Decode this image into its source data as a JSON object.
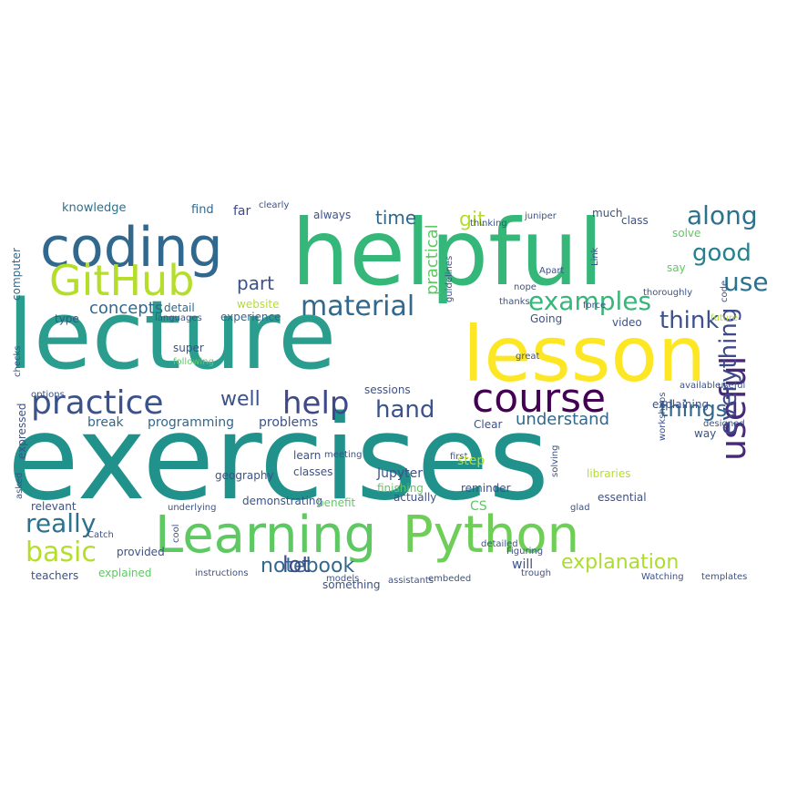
{
  "palette": {
    "dark_purple": "#440154",
    "indigo": "#3b528b",
    "blue_teal": "#31688e",
    "teal": "#21918c",
    "green_teal": "#35b779",
    "green": "#5ec962",
    "lime": "#90d743",
    "yellow": "#fde725"
  },
  "words": [
    {
      "text": "exercises",
      "color": "#21918c"
    },
    {
      "text": "lecture",
      "color": "#2a9d8f"
    },
    {
      "text": "helpful",
      "color": "#35b779"
    },
    {
      "text": "lesson",
      "color": "#fde725"
    },
    {
      "text": "coding",
      "color": "#31688e"
    },
    {
      "text": "Learning",
      "color": "#5ec962"
    },
    {
      "text": "Python",
      "color": "#6ece58"
    },
    {
      "text": "GitHub",
      "color": "#b5de2b"
    },
    {
      "text": "course",
      "color": "#440154"
    },
    {
      "text": "practice",
      "color": "#3b528b"
    },
    {
      "text": "useful",
      "color": "#482878"
    },
    {
      "text": "help",
      "color": "#3e4989"
    },
    {
      "text": "along",
      "color": "#2c728e"
    },
    {
      "text": "good",
      "color": "#27808e"
    },
    {
      "text": "use",
      "color": "#2c728e"
    },
    {
      "text": "material",
      "color": "#31688e"
    },
    {
      "text": "think",
      "color": "#3b528b"
    },
    {
      "text": "examples",
      "color": "#35b779"
    },
    {
      "text": "really",
      "color": "#2c728e"
    },
    {
      "text": "basic",
      "color": "#b5de2b"
    },
    {
      "text": "everything",
      "color": "#3e4989"
    },
    {
      "text": "things",
      "color": "#31688e"
    },
    {
      "text": "hand",
      "color": "#3b528b"
    },
    {
      "text": "well",
      "color": "#3b528b"
    },
    {
      "text": "explanation",
      "color": "#addc30"
    },
    {
      "text": "notebook",
      "color": "#31688e"
    },
    {
      "text": "lot",
      "color": "#3e4989"
    },
    {
      "text": "concepts",
      "color": "#31688e"
    },
    {
      "text": "part",
      "color": "#3b528b"
    },
    {
      "text": "git",
      "color": "#b5de2b"
    },
    {
      "text": "time",
      "color": "#31688e"
    },
    {
      "text": "practical",
      "color": "#5ec962"
    },
    {
      "text": "understand",
      "color": "#31688e"
    },
    {
      "text": "programming",
      "color": "#31688e"
    },
    {
      "text": "problems",
      "color": "#3b528b"
    },
    {
      "text": "break",
      "color": "#31688e"
    },
    {
      "text": "knowledge",
      "color": "#2c728e"
    },
    {
      "text": "find",
      "color": "#31688e"
    },
    {
      "text": "far",
      "color": "#3e4989"
    },
    {
      "text": "clearly",
      "color": "#3b528b"
    },
    {
      "text": "always",
      "color": "#3b528b"
    },
    {
      "text": "thinking",
      "color": "#3b528b"
    },
    {
      "text": "juniper",
      "color": "#3b528b"
    },
    {
      "text": "much",
      "color": "#3b528b"
    },
    {
      "text": "class",
      "color": "#3b528b"
    },
    {
      "text": "solve",
      "color": "#5ec962"
    },
    {
      "text": "say",
      "color": "#5ec962"
    },
    {
      "text": "Link",
      "color": "#3b528b"
    },
    {
      "text": "Apart",
      "color": "#3b528b"
    },
    {
      "text": "nope",
      "color": "#3b528b"
    },
    {
      "text": "thanks",
      "color": "#3b528b"
    },
    {
      "text": "website",
      "color": "#b5de2b"
    },
    {
      "text": "languages",
      "color": "#3b528b"
    },
    {
      "text": "type",
      "color": "#3b528b"
    },
    {
      "text": "detail",
      "color": "#31688e"
    },
    {
      "text": "experience",
      "color": "#31688e"
    },
    {
      "text": "super",
      "color": "#3b528b"
    },
    {
      "text": "following",
      "color": "#5ec962"
    },
    {
      "text": "Going",
      "color": "#3b528b"
    },
    {
      "text": "video",
      "color": "#3b528b"
    },
    {
      "text": "force",
      "color": "#3b528b"
    },
    {
      "text": "thoroughly",
      "color": "#3b528b"
    },
    {
      "text": "future",
      "color": "#b5de2b"
    },
    {
      "text": "computer",
      "color": "#31688e"
    },
    {
      "text": "sessions",
      "color": "#3b528b"
    },
    {
      "text": "guidelines",
      "color": "#3b528b"
    },
    {
      "text": "available",
      "color": "#3b528b"
    },
    {
      "text": "useful",
      "color": "#3b528b"
    },
    {
      "text": "designed",
      "color": "#3b528b"
    },
    {
      "text": "way",
      "color": "#3b528b"
    },
    {
      "text": "code",
      "color": "#3b528b"
    },
    {
      "text": "Clear",
      "color": "#3b528b"
    },
    {
      "text": "first",
      "color": "#3b528b"
    },
    {
      "text": "step",
      "color": "#b5de2b"
    },
    {
      "text": "Jupyter",
      "color": "#3b528b"
    },
    {
      "text": "finishing",
      "color": "#5ec962"
    },
    {
      "text": "reminder",
      "color": "#3b528b"
    },
    {
      "text": "libraries",
      "color": "#b5de2b"
    },
    {
      "text": "workshops",
      "color": "#3b528b"
    },
    {
      "text": "learn",
      "color": "#3b528b"
    },
    {
      "text": "classes",
      "color": "#3b528b"
    },
    {
      "text": "something",
      "color": "#3b528b"
    },
    {
      "text": "actually",
      "color": "#3b528b"
    },
    {
      "text": "will",
      "color": "#3b528b"
    },
    {
      "text": "detailed",
      "color": "#3b528b"
    },
    {
      "text": "essential",
      "color": "#3b528b"
    },
    {
      "text": "glad",
      "color": "#3b528b"
    },
    {
      "text": "geography",
      "color": "#3b528b"
    },
    {
      "text": "demonstrating",
      "color": "#3b528b"
    },
    {
      "text": "benefit",
      "color": "#5ec962"
    },
    {
      "text": "CS",
      "color": "#5ec962"
    },
    {
      "text": "relevant",
      "color": "#3b528b"
    },
    {
      "text": "Catch",
      "color": "#3b528b"
    },
    {
      "text": "explained",
      "color": "#5ec962"
    },
    {
      "text": "provided",
      "color": "#3b528b"
    },
    {
      "text": "teachers",
      "color": "#3b528b"
    },
    {
      "text": "instructions",
      "color": "#3b528b"
    },
    {
      "text": "models",
      "color": "#3b528b"
    },
    {
      "text": "assistants",
      "color": "#3b528b"
    },
    {
      "text": "embeded",
      "color": "#3b528b"
    },
    {
      "text": "trough",
      "color": "#3b528b"
    },
    {
      "text": "Watching",
      "color": "#3b528b"
    },
    {
      "text": "templates",
      "color": "#3b528b"
    },
    {
      "text": "options",
      "color": "#3b528b"
    },
    {
      "text": "expressed",
      "color": "#3b528b"
    },
    {
      "text": "asked",
      "color": "#3b528b"
    },
    {
      "text": "checks",
      "color": "#3b528b"
    },
    {
      "text": "meeting",
      "color": "#3b528b"
    },
    {
      "text": "solving",
      "color": "#3b528b"
    },
    {
      "text": "explaining",
      "color": "#3b528b"
    },
    {
      "text": "underlying",
      "color": "#3b528b"
    },
    {
      "text": "cool",
      "color": "#3b528b"
    },
    {
      "text": "great",
      "color": "#3b528b"
    },
    {
      "text": "Figuring",
      "color": "#3b528b"
    }
  ]
}
